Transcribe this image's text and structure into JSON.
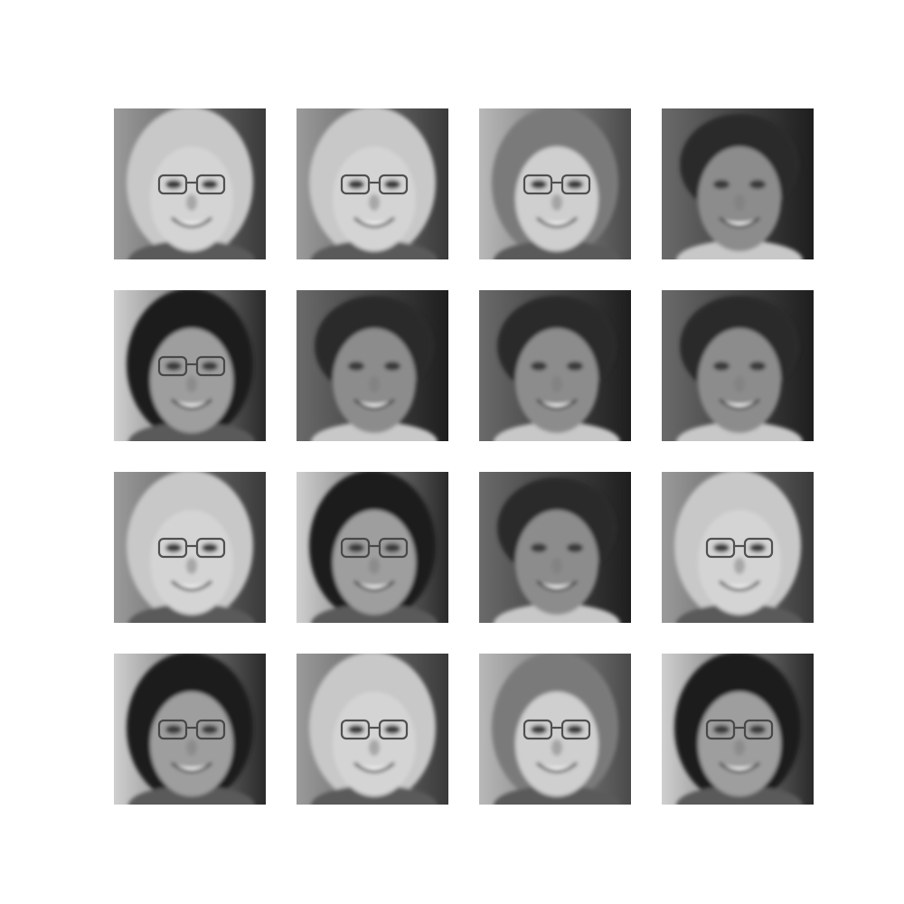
{
  "figure": {
    "rows": 4,
    "cols": 4,
    "tiles": [
      {
        "variant": "light-hair-glasses"
      },
      {
        "variant": "light-hair-glasses"
      },
      {
        "variant": "mid-hair-glasses"
      },
      {
        "variant": "dark-short-hair"
      },
      {
        "variant": "dark-long-hair"
      },
      {
        "variant": "dark-short-hair"
      },
      {
        "variant": "dark-short-hair"
      },
      {
        "variant": "dark-short-hair"
      },
      {
        "variant": "light-hair-glasses"
      },
      {
        "variant": "dark-long-hair"
      },
      {
        "variant": "dark-short-hair"
      },
      {
        "variant": "light-hair-glasses"
      },
      {
        "variant": "dark-long-hair"
      },
      {
        "variant": "light-hair-glasses"
      },
      {
        "variant": "mid-hair-glasses"
      },
      {
        "variant": "dark-long-hair"
      }
    ],
    "palette": {
      "light-hair-glasses": {
        "bg": "#9a9a9a",
        "bg2": "#3a3a3a",
        "hair": "#c8c8c8",
        "skin": "#d4d4d4",
        "glasses": true
      },
      "mid-hair-glasses": {
        "bg": "#b8b8b8",
        "bg2": "#4a4a4a",
        "hair": "#7a7a7a",
        "skin": "#cfcfcf",
        "glasses": true
      },
      "dark-short-hair": {
        "bg": "#6a6a6a",
        "bg2": "#1e1e1e",
        "hair": "#2a2a2a",
        "skin": "#8c8c8c",
        "glasses": false
      },
      "dark-long-hair": {
        "bg": "#cfcfcf",
        "bg2": "#2a2a2a",
        "hair": "#1f1f1f",
        "skin": "#9e9e9e",
        "glasses": true
      }
    }
  }
}
